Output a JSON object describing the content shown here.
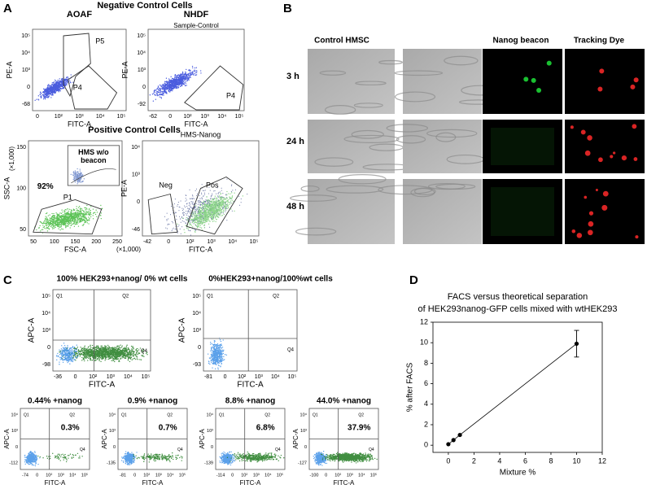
{
  "panel_a": {
    "label": "A",
    "negative_title": "Negative Control Cells",
    "positive_title": "Positive Control Cells",
    "plots": [
      {
        "title": "AOAF",
        "y_label": "PE-A",
        "x_label": "FITC-A",
        "y_ticks": [
          "10⁵",
          "10⁴",
          "10³",
          "0",
          "-68"
        ],
        "x_ticks": [
          "0",
          "10²",
          "10³",
          "10⁴",
          "10⁵"
        ],
        "gates": [
          "P5",
          "P4"
        ]
      },
      {
        "title": "NHDF",
        "subtitle": "Sample-Control",
        "y_label": "PE-A",
        "x_label": "FITC-A",
        "y_ticks": [
          "10⁵",
          "10⁴",
          "10³",
          "0",
          "-92"
        ],
        "x_ticks": [
          "-62",
          "0",
          "10²",
          "10³",
          "10⁴",
          "10⁵"
        ],
        "gates": [
          "P4"
        ]
      },
      {
        "y_label": "SSC-A",
        "y_unit": "(×1,000)",
        "x_label": "FSC-A",
        "x_unit": "(×1,000)",
        "y_ticks": [
          "150",
          "100",
          "50"
        ],
        "x_ticks": [
          "50",
          "100",
          "150",
          "200",
          "250"
        ],
        "gates": [
          "P1"
        ],
        "percent": "92%",
        "inset": [
          "HMS w/o",
          "beacon"
        ]
      },
      {
        "title": "HMS-Nanog",
        "y_label": "PE-A",
        "x_label": "FITC-A",
        "y_ticks": [
          "10⁴",
          "10³",
          "0",
          "-46"
        ],
        "x_ticks": [
          "-42",
          "0",
          "10²",
          "10³",
          "10⁴",
          "10⁵"
        ],
        "gates": [
          "Neg",
          "Pos"
        ]
      }
    ]
  },
  "panel_b": {
    "label": "B",
    "columns": {
      "control": "Control HMSC",
      "beacon": "Nanog beacon",
      "dye": "Tracking Dye"
    },
    "rows": [
      "3 h",
      "24 h",
      "48 h"
    ]
  },
  "panel_c": {
    "label": "C",
    "plots": [
      {
        "title": "100% HEK293+nanog/ 0% wt cells",
        "y_label": "APC-A",
        "x_label": "FITC-A",
        "y_ticks": [
          "10⁵",
          "10⁴",
          "10³",
          "0",
          "-98"
        ],
        "x_ticks": [
          "-36",
          "0",
          "10²",
          "10³",
          "10⁴",
          "10⁵"
        ],
        "quadrants": [
          "Q1",
          "Q2",
          "Q4"
        ]
      },
      {
        "title": "0%HEK293+nanog/100%wt cells",
        "y_label": "APC-A",
        "x_label": "FITC-A",
        "y_ticks": [
          "10⁵",
          "10⁴",
          "10³",
          "0",
          "-93"
        ],
        "x_ticks": [
          "-81",
          "0",
          "10²",
          "10³",
          "10⁴",
          "10⁵"
        ],
        "quadrants": [
          "Q1",
          "Q2",
          "Q4"
        ]
      },
      {
        "title": "0.44% +nanog",
        "percent": "0.3%",
        "y_label": "APC-A",
        "x_label": "FITC-A",
        "y_ticks": [
          "10⁴",
          "10³",
          "0",
          "-112"
        ],
        "x_ticks": [
          "-74",
          "0",
          "10²",
          "10³",
          "10⁴",
          "10⁵"
        ],
        "quadrants": [
          "Q1",
          "Q2",
          "Q4"
        ]
      },
      {
        "title": "0.9% +nanog",
        "percent": "0.7%",
        "y_label": "APC-A",
        "x_label": "FITC-A",
        "y_ticks": [
          "10⁴",
          "10³",
          "0",
          "-135"
        ],
        "x_ticks": [
          "-81",
          "0",
          "10²",
          "10³",
          "10⁴",
          "10⁵"
        ],
        "quadrants": [
          "Q1",
          "Q2",
          "Q4"
        ]
      },
      {
        "title": "8.8% +nanog",
        "percent": "6.8%",
        "y_label": "APC-A",
        "x_label": "FITC-A",
        "y_ticks": [
          "10⁴",
          "10³",
          "0",
          "-139"
        ],
        "x_ticks": [
          "-114",
          "0",
          "10²",
          "10³",
          "10⁴",
          "10⁵"
        ],
        "quadrants": [
          "Q1",
          "Q2",
          "Q4"
        ]
      },
      {
        "title": "44.0% +nanog",
        "percent": "37.9%",
        "y_label": "APC-A",
        "x_label": "FITC-A",
        "y_ticks": [
          "10⁴",
          "10³",
          "0",
          "-127"
        ],
        "x_ticks": [
          "-100",
          "0",
          "10²",
          "10³",
          "10⁴",
          "10⁵"
        ],
        "quadrants": [
          "Q1",
          "Q2",
          "Q4"
        ]
      }
    ]
  },
  "chart_data": {
    "type": "line",
    "label": "D",
    "title": [
      "FACS versus theoretical separation",
      "of HEK293nanog-GFP cells mixed with wtHEK293"
    ],
    "x_label": "Mixture %",
    "y_label": "% after FACS",
    "x": [
      0,
      0.4,
      0.9,
      10
    ],
    "values": [
      0.1,
      0.5,
      1.0,
      9.9
    ],
    "errors": [
      null,
      null,
      null,
      1.3
    ],
    "color": "#000000",
    "xlim": [
      -1.2,
      12
    ],
    "ylim": [
      -0.7,
      12
    ],
    "xticks": [
      0,
      2,
      4,
      6,
      8,
      10,
      12
    ],
    "yticks": [
      0,
      2,
      4,
      6,
      8,
      10,
      12
    ]
  }
}
